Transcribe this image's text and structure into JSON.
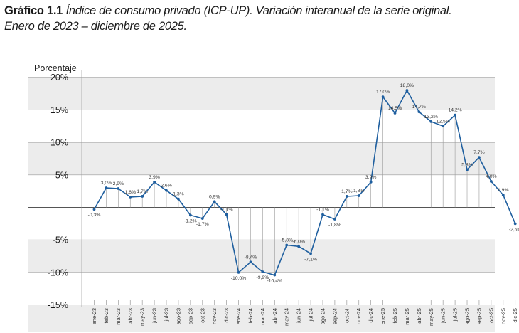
{
  "title": {
    "lead": "Gráfico 1.1",
    "line1": "Índice de consumo privado (ICP-UP). Variación interanual de la serie original.",
    "line2": "Enero de 2023 – diciembre de 2025."
  },
  "colors": {
    "line": "#1f5f9f",
    "band": "#ececec",
    "grid": "#9a9a9a",
    "zero": "#555555",
    "drop": "#9a9a9a"
  },
  "chart_data": {
    "type": "line",
    "title": "Índice de consumo privado (ICP-UP). Variación interanual de la serie original.",
    "subtitle": "Enero de 2023 – diciembre de 2025.",
    "ylabel": "Porcentaje",
    "xlabel": "",
    "ylim": [
      -15,
      20
    ],
    "categories": [
      "ene-23",
      "feb-23",
      "mar-23",
      "abr-23",
      "may-23",
      "jun-23",
      "jul-23",
      "ago-23",
      "sep-23",
      "oct-23",
      "nov-23",
      "dic-23",
      "ene-24",
      "feb-24",
      "mar-24",
      "abr-24",
      "may-24",
      "jun-24",
      "jul-24",
      "ago-24",
      "sep-24",
      "oct-24",
      "nov-24",
      "dic-24",
      "ene-25",
      "feb-25",
      "mar-25",
      "abr-25",
      "may-25",
      "jun-25",
      "jul-25",
      "ago-25",
      "sep-25",
      "oct-25",
      "nov-25",
      "dic-25"
    ],
    "values": [
      -0.3,
      3.0,
      2.9,
      1.6,
      1.7,
      3.9,
      2.6,
      1.3,
      -1.2,
      -1.7,
      0.9,
      -1.1,
      -10.0,
      -8.4,
      -9.9,
      -10.4,
      -5.8,
      -6.0,
      -7.1,
      -1.1,
      -1.8,
      1.7,
      1.8,
      3.9,
      17.0,
      14.5,
      18.0,
      14.7,
      13.2,
      12.5,
      14.2,
      5.8,
      7.7,
      4.0,
      1.9,
      -2.5
    ],
    "data_labels": [
      "-0,3%",
      "3,0%",
      "2,9%",
      "1,6%",
      "1,7%",
      "3,9%",
      "2,6%",
      "1,3%",
      "-1,2%",
      "-1,7%",
      "0,9%",
      "-1,1%",
      "-10,0%",
      "-8,4%",
      "-9,9%",
      "-10,4%",
      "-5,8%",
      "-6,0%",
      "-7,1%",
      "-1,1%",
      "-1,8%",
      "1,7%",
      "1,8%",
      "3,9%",
      "17,0%",
      "14,5%",
      "18,0%",
      "14,7%",
      "13,2%",
      "12,5%",
      "14,2%",
      "5,8%",
      "7,7%",
      "4,0%",
      "1,9%",
      "-2,5%"
    ],
    "yticks": [
      20,
      15,
      10,
      5,
      -5,
      -10,
      -15
    ],
    "ytick_labels": [
      "20%",
      "15%",
      "10%",
      "5%",
      "-5%",
      "-10%",
      "-15%"
    ]
  }
}
